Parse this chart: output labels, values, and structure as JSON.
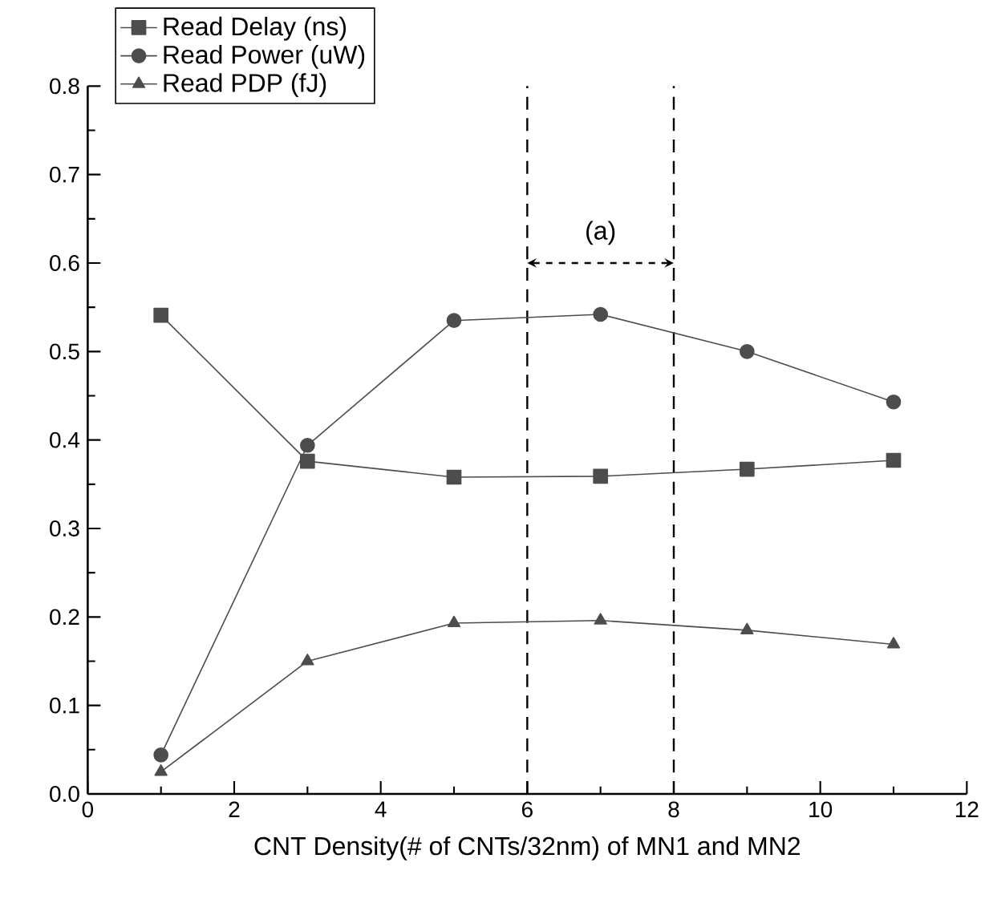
{
  "chart_data": {
    "type": "line",
    "xlabel": "CNT Density(# of CNTs/32nm) of MN1 and MN2",
    "x": [
      1,
      3,
      5,
      7,
      9,
      11
    ],
    "series": [
      {
        "name": "Read Delay (ns)",
        "color": "#4d4d4d",
        "marker": "square",
        "values": [
          0.541,
          0.376,
          0.358,
          0.359,
          0.367,
          0.377
        ]
      },
      {
        "name": "Read Power (uW)",
        "color": "#4d4d4d",
        "marker": "circle",
        "values": [
          0.044,
          0.394,
          0.535,
          0.542,
          0.5,
          0.443
        ]
      },
      {
        "name": "Read PDP (fJ)",
        "color": "#4d4d4d",
        "marker": "triangle",
        "values": [
          0.025,
          0.15,
          0.193,
          0.196,
          0.185,
          0.169
        ]
      }
    ],
    "xlim": [
      0,
      12
    ],
    "xticks": [
      0,
      2,
      4,
      6,
      8,
      10,
      12
    ],
    "ylim": [
      0,
      0.8
    ],
    "yticks": [
      {
        "value": 0,
        "label": "0.0"
      },
      0.1,
      0.2,
      0.3,
      0.4,
      0.5,
      0.6,
      0.7,
      0.8
    ],
    "ref_lines": [
      {
        "axis": "x",
        "value": 6,
        "line_style": "dashed",
        "color": "#000000"
      },
      {
        "axis": "x",
        "value": 8,
        "line_style": "dashed",
        "color": "#000000"
      }
    ],
    "annotations": [
      "(a)"
    ],
    "legend": "top left",
    "grid": false,
    "line_style": "solid"
  }
}
